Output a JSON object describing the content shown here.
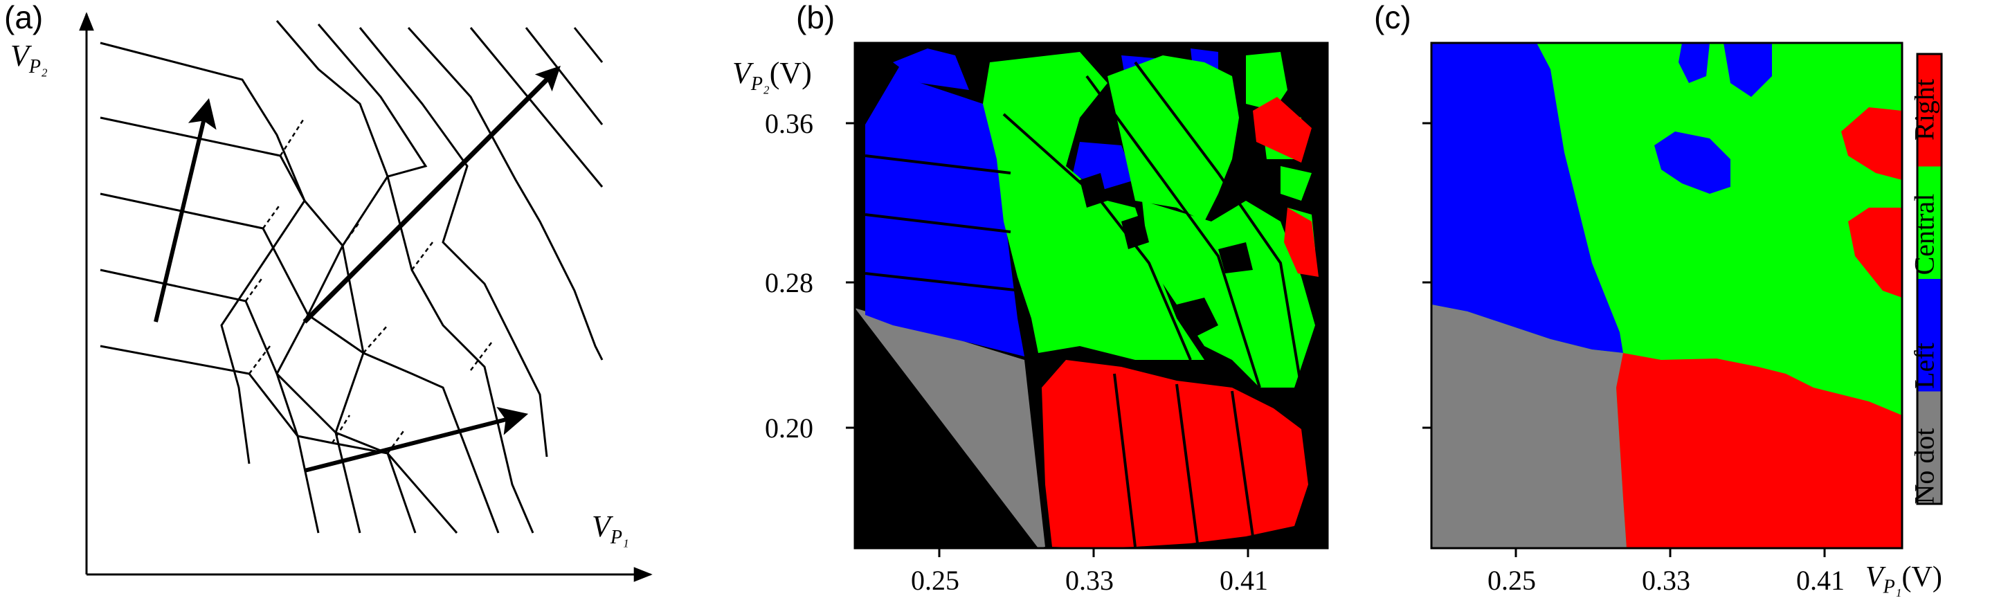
{
  "panels": {
    "a": {
      "letter": "(a)",
      "xlabel_var": "V",
      "xlabel_sub": "P₁",
      "ylabel_var": "V",
      "ylabel_sub": "P₂"
    },
    "b": {
      "letter": "(b)",
      "ylabel_var": "V",
      "ylabel_sub": "P₂",
      "ylabel_unit": "(V)",
      "xticks": [
        "0.25",
        "0.33",
        "0.41"
      ],
      "yticks": [
        "0.36",
        "0.28",
        "0.20"
      ]
    },
    "c": {
      "letter": "(c)",
      "xlabel_var": "V",
      "xlabel_sub": "P₁",
      "xlabel_unit": "(V)",
      "xticks": [
        "0.25",
        "0.33",
        "0.41"
      ]
    }
  },
  "colorbar": {
    "labels": [
      "No dot",
      "Left",
      "Central",
      "Right"
    ],
    "colors": [
      "#808080",
      "#0000ff",
      "#00ff00",
      "#ff0000"
    ]
  },
  "chart_data": [
    {
      "type": "diagram",
      "panel": "a",
      "xlabel": "V_P1",
      "ylabel": "V_P2"
    },
    {
      "type": "heatmap",
      "panel": "b",
      "xticks": [
        0.25,
        0.33,
        0.41
      ],
      "yticks": [
        0.36,
        0.28,
        0.2
      ],
      "xlim": [
        0.23,
        0.45
      ],
      "ylim": [
        0.15,
        0.42
      ],
      "ylabel": "V_P2 (V)",
      "categories": [
        "No dot",
        "Left",
        "Central",
        "Right"
      ]
    },
    {
      "type": "heatmap",
      "panel": "c",
      "xticks": [
        0.25,
        0.33,
        0.41
      ],
      "xlim": [
        0.23,
        0.45
      ],
      "ylim": [
        0.15,
        0.42
      ],
      "xlabel": "V_P1 (V)",
      "categories": [
        "No dot",
        "Left",
        "Central",
        "Right"
      ]
    }
  ]
}
